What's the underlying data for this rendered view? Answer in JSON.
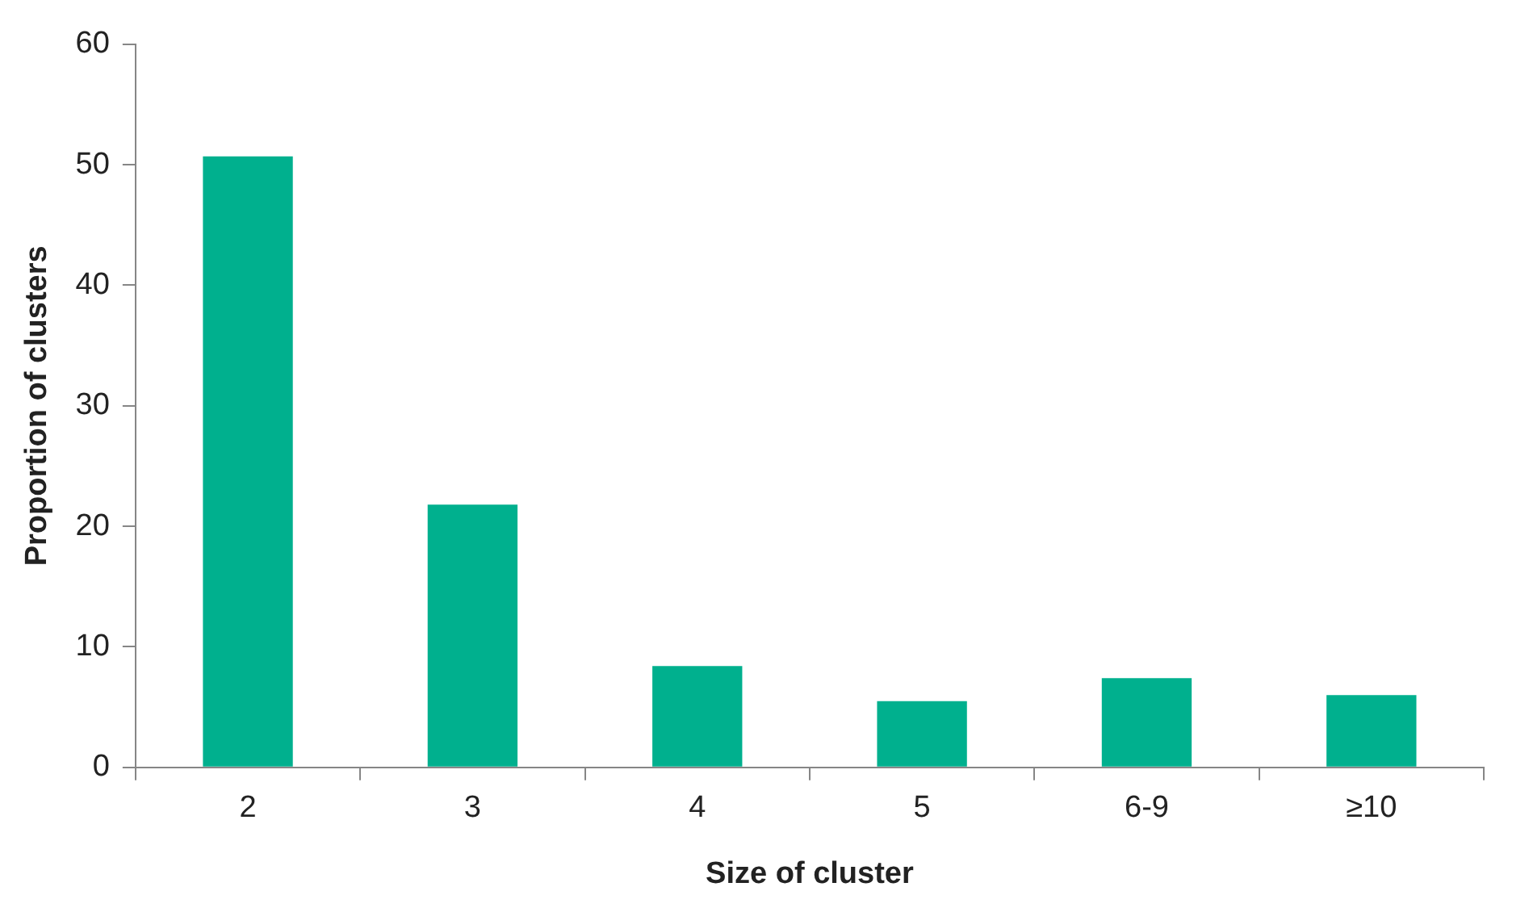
{
  "chart_data": {
    "type": "bar",
    "xlabel": "Size of cluster",
    "ylabel": "Proportion of clusters",
    "categories": [
      "2",
      "3",
      "4",
      "5",
      "6-9",
      "≥10"
    ],
    "series": [
      {
        "color": "#00b08e",
        "values": [
          50.7,
          21.8,
          8.4,
          5.5,
          7.4,
          6.0
        ]
      }
    ],
    "ylim": [
      0,
      60
    ],
    "yticks": [
      0,
      10,
      20,
      30,
      40,
      50,
      60
    ],
    "grid": false,
    "legend": false
  }
}
